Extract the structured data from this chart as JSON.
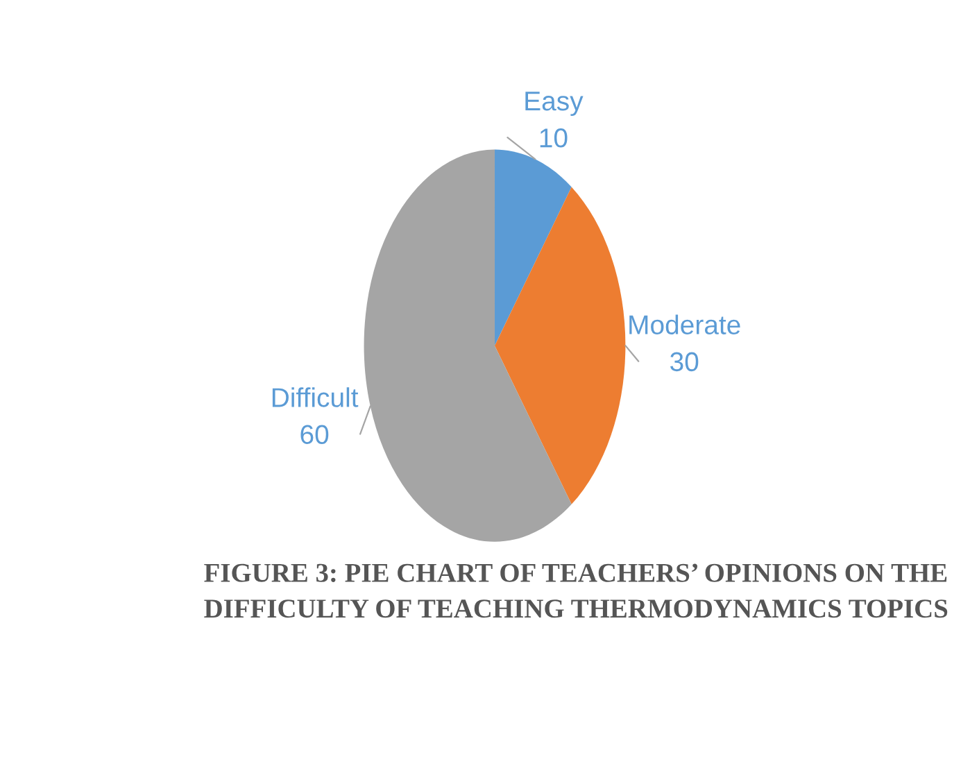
{
  "chart_data": {
    "type": "pie",
    "title": "FIGURE 3: PIE CHART OF TEACHERS’ OPINIONS ON THE DIFFICULTY OF TEACHING THERMODYNAMICS TOPICS",
    "categories": [
      "Easy",
      "Moderate",
      "Difficult"
    ],
    "values": [
      10,
      30,
      60
    ],
    "colors": [
      "#5b9bd5",
      "#ed7d31",
      "#a5a5a5"
    ],
    "data_labels": true
  }
}
